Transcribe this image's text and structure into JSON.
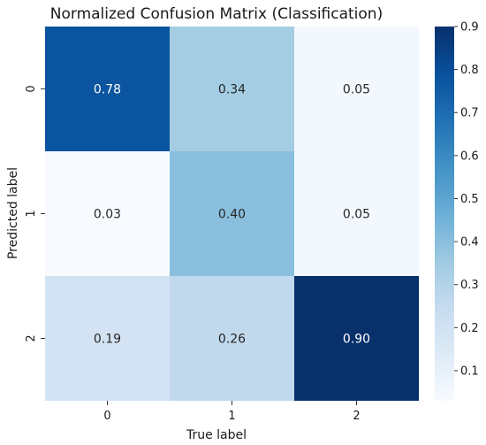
{
  "chart_data": {
    "type": "heatmap",
    "title": "Normalized Confusion Matrix (Classification)",
    "xlabel": "True label",
    "ylabel": "Predicted label",
    "x_categories": [
      "0",
      "1",
      "2"
    ],
    "y_categories": [
      "0",
      "1",
      "2"
    ],
    "values": [
      [
        0.78,
        0.34,
        0.05
      ],
      [
        0.03,
        0.4,
        0.05
      ],
      [
        0.19,
        0.26,
        0.9
      ]
    ],
    "cell_labels": [
      [
        "0.78",
        "0.34",
        "0.05"
      ],
      [
        "0.03",
        "0.40",
        "0.05"
      ],
      [
        "0.19",
        "0.26",
        "0.90"
      ]
    ],
    "colorbar": {
      "range": [
        0.03,
        0.9
      ],
      "ticks": [
        0.1,
        0.2,
        0.3,
        0.4,
        0.5,
        0.6,
        0.7,
        0.8,
        0.9
      ],
      "tick_labels": [
        "0.1",
        "0.2",
        "0.3",
        "0.4",
        "0.5",
        "0.6",
        "0.7",
        "0.8",
        "0.9"
      ]
    },
    "colormap": "Blues",
    "colormap_stops": [
      "#f7fbff",
      "#deebf7",
      "#c6dbef",
      "#9ecae1",
      "#6baed6",
      "#4292c6",
      "#2171b5",
      "#08519c",
      "#08306b"
    ],
    "grid": false,
    "legend": "colorbar-right"
  }
}
